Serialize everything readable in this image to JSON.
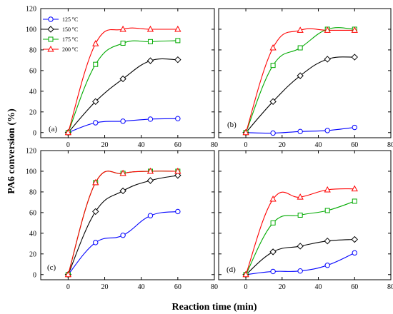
{
  "figure": {
    "ylabel": "PA6 conversion (%)",
    "xlabel": "Reaction time (min)"
  },
  "legend": {
    "entries": [
      {
        "name": "125 °C",
        "base": "125",
        "exp": "o",
        "unit": "C",
        "color": "#0000ff",
        "marker": "circle"
      },
      {
        "name": "150 °C",
        "base": "150",
        "exp": "o",
        "unit": "C",
        "color": "#000000",
        "marker": "diamond"
      },
      {
        "name": "175 °C",
        "base": "175",
        "exp": "o",
        "unit": "C",
        "color": "#00aa00",
        "marker": "square"
      },
      {
        "name": "200 °C",
        "base": "200",
        "exp": "o",
        "unit": "C",
        "color": "#ff0000",
        "marker": "triangle"
      }
    ],
    "placement": "top-left of panel (a)"
  },
  "chart_data": [
    {
      "type": "line",
      "panel": "(a)",
      "xlim": [
        -15,
        80
      ],
      "ylim": [
        -5,
        120
      ],
      "xticks": [
        0,
        20,
        40,
        60,
        80
      ],
      "yticks": [
        0,
        20,
        40,
        60,
        80,
        100,
        120
      ],
      "x": [
        0,
        15,
        30,
        45,
        60
      ],
      "series": [
        {
          "name": "125 °C",
          "values": [
            0,
            9.5,
            11,
            13,
            13.5
          ]
        },
        {
          "name": "150 °C",
          "values": [
            0,
            30,
            52,
            69.5,
            70.5
          ]
        },
        {
          "name": "175 °C",
          "values": [
            0,
            66,
            86.5,
            88,
            89
          ]
        },
        {
          "name": "200 °C",
          "values": [
            0,
            86,
            100,
            100,
            100
          ]
        }
      ]
    },
    {
      "type": "line",
      "panel": "(b)",
      "xlim": [
        -15,
        80
      ],
      "ylim": [
        -5,
        120
      ],
      "xticks": [
        0,
        20,
        40,
        60,
        80
      ],
      "yticks": [
        0,
        20,
        40,
        60,
        80,
        100,
        120
      ],
      "x": [
        0,
        15,
        30,
        45,
        60
      ],
      "series": [
        {
          "name": "125 °C",
          "values": [
            0,
            -0.5,
            1,
            2,
            5
          ]
        },
        {
          "name": "150 °C",
          "values": [
            0,
            30,
            55,
            71,
            73
          ]
        },
        {
          "name": "175 °C",
          "values": [
            0,
            65,
            82,
            100,
            100
          ]
        },
        {
          "name": "200 °C",
          "values": [
            0,
            82,
            99,
            99,
            99
          ]
        }
      ]
    },
    {
      "type": "line",
      "panel": "(c)",
      "xlim": [
        -15,
        80
      ],
      "ylim": [
        -5,
        120
      ],
      "xticks": [
        0,
        20,
        40,
        60,
        80
      ],
      "yticks": [
        0,
        20,
        40,
        60,
        80,
        100,
        120
      ],
      "x": [
        0,
        15,
        30,
        45,
        60
      ],
      "series": [
        {
          "name": "125 °C",
          "values": [
            0,
            31,
            38,
            57,
            61
          ]
        },
        {
          "name": "150 °C",
          "values": [
            0,
            61,
            81,
            91,
            96
          ]
        },
        {
          "name": "175 °C",
          "values": [
            0,
            89,
            98,
            100,
            100
          ]
        },
        {
          "name": "200 °C",
          "values": [
            0,
            89,
            98,
            100,
            100
          ]
        }
      ]
    },
    {
      "type": "line",
      "panel": "(d)",
      "xlim": [
        -15,
        80
      ],
      "ylim": [
        -5,
        120
      ],
      "xticks": [
        0,
        20,
        40,
        60,
        80
      ],
      "yticks": [
        0,
        20,
        40,
        60,
        80,
        100,
        120
      ],
      "x": [
        0,
        15,
        30,
        45,
        60
      ],
      "series": [
        {
          "name": "125 °C",
          "values": [
            0,
            3,
            3.5,
            9,
            21
          ]
        },
        {
          "name": "150 °C",
          "values": [
            0,
            22,
            27.5,
            32.5,
            34
          ]
        },
        {
          "name": "175 °C",
          "values": [
            0,
            50,
            57.5,
            62,
            71
          ]
        },
        {
          "name": "200 °C",
          "values": [
            0,
            73,
            75,
            82,
            83
          ]
        }
      ]
    }
  ]
}
